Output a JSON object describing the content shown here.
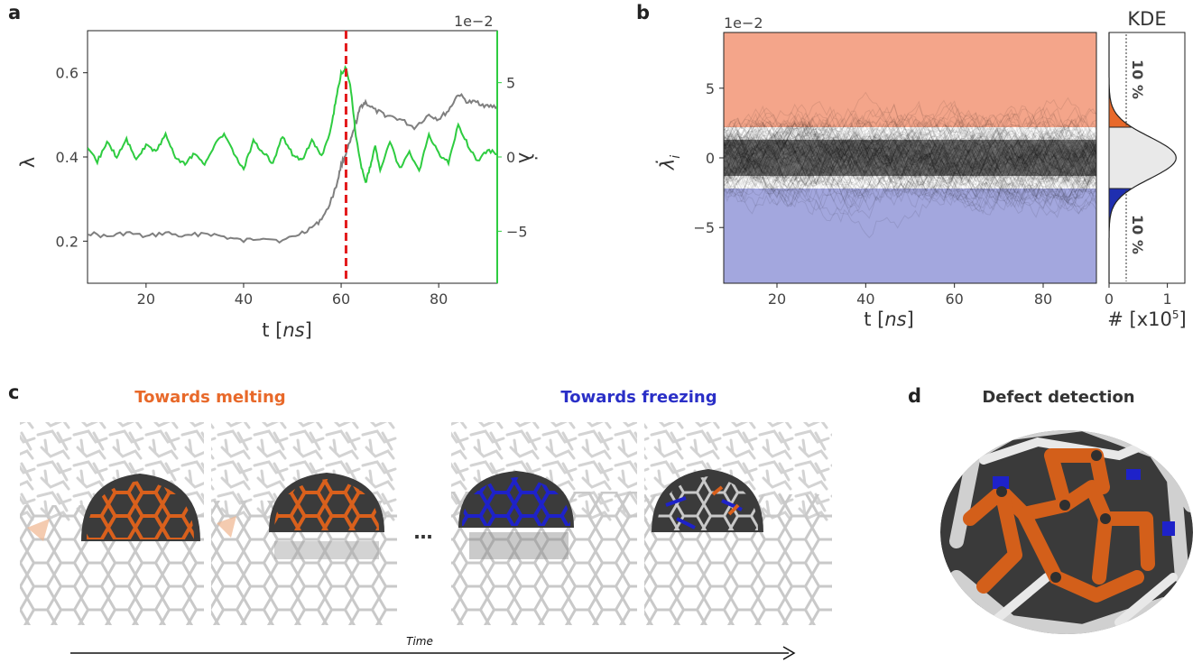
{
  "panel_labels": {
    "a": "a",
    "b": "b",
    "c": "c",
    "d": "d"
  },
  "colors": {
    "lambda": "#7f7f7f",
    "lambda_dot": "#2ecc40",
    "event": "#e31a1c",
    "melting": "#f4a58a",
    "freezing": "#a3a7de",
    "kde_melt": "#e8692a",
    "kde_freeze": "#1f2fb0"
  },
  "chart_data": [
    {
      "type": "line",
      "panel": "a",
      "xlabel_prefix": "t [",
      "xlabel_unit": "ns",
      "xlabel_suffix": "]",
      "ylabel": "λ",
      "ylabel_right": "λ̇",
      "right_multiplier": "1e−2",
      "xlim": [
        8,
        92
      ],
      "ylim": [
        0.1,
        0.7
      ],
      "ylim_right": [
        -8.5,
        8.5
      ],
      "xticks": [
        "20",
        "40",
        "60",
        "80"
      ],
      "yticks": [
        "0.2",
        "0.4",
        "0.6"
      ],
      "yticks_right": [
        "−5",
        "0",
        "5"
      ],
      "event_x": 61,
      "series": [
        {
          "axis": "left",
          "x": [
            8,
            12,
            16,
            20,
            24,
            28,
            32,
            36,
            40,
            44,
            48,
            52,
            55,
            57,
            59,
            60,
            61,
            62,
            63,
            64,
            65,
            67,
            69,
            72,
            75,
            78,
            80,
            82,
            84,
            86,
            88,
            90,
            92
          ],
          "y": [
            0.22,
            0.21,
            0.22,
            0.21,
            0.22,
            0.21,
            0.22,
            0.21,
            0.2,
            0.21,
            0.2,
            0.22,
            0.24,
            0.27,
            0.33,
            0.38,
            0.41,
            0.44,
            0.48,
            0.52,
            0.53,
            0.51,
            0.5,
            0.49,
            0.47,
            0.5,
            0.49,
            0.51,
            0.55,
            0.53,
            0.53,
            0.52,
            0.52
          ]
        },
        {
          "axis": "right",
          "x": [
            8,
            10,
            12,
            14,
            16,
            18,
            20,
            22,
            24,
            26,
            28,
            30,
            32,
            34,
            36,
            38,
            40,
            42,
            44,
            46,
            48,
            50,
            52,
            54,
            56,
            58,
            59,
            60,
            61,
            62,
            63,
            64,
            65,
            66,
            67,
            68,
            70,
            72,
            74,
            76,
            78,
            80,
            82,
            84,
            86,
            88,
            90,
            92
          ],
          "y": [
            0.5,
            -0.3,
            1.0,
            0.0,
            1.2,
            -0.2,
            0.8,
            0.4,
            1.5,
            0.0,
            -0.5,
            0.3,
            -0.6,
            0.8,
            1.6,
            0.2,
            -0.8,
            1.1,
            0.3,
            -0.4,
            1.4,
            0.2,
            -0.2,
            1.1,
            0.0,
            2.0,
            4.0,
            5.6,
            6.0,
            4.5,
            1.5,
            -0.5,
            -1.8,
            -0.6,
            0.8,
            -1.0,
            1.0,
            -0.8,
            0.3,
            -1.0,
            1.5,
            0.2,
            -0.4,
            2.2,
            0.8,
            -0.3,
            0.5,
            0.2
          ]
        }
      ]
    },
    {
      "type": "line",
      "panel": "b",
      "xlabel_prefix": "t [",
      "xlabel_unit": "ns",
      "xlabel_suffix": "]",
      "ylabel": "λ̇",
      "ylabel_sub": "i",
      "multiplier": "1e−2",
      "xlim": [
        8,
        92
      ],
      "ylim": [
        -9,
        9
      ],
      "xticks": [
        "20",
        "40",
        "60",
        "80"
      ],
      "yticks": [
        "−5",
        "0",
        "5"
      ],
      "melting_threshold": 2.2,
      "freezing_threshold": -2.2
    },
    {
      "type": "area",
      "panel": "b-kde",
      "title": "KDE",
      "xlabel": "# [x10",
      "xlabel_sup": "5",
      "xlabel_suffix": "]",
      "xlim": [
        0,
        1.3
      ],
      "xticks": [
        "0",
        "1"
      ],
      "annotations": [
        "10 %",
        "10 %"
      ]
    }
  ],
  "panel_c": {
    "caption_melting": "Towards melting",
    "caption_freezing": "Towards freezing",
    "ellipsis": "…",
    "time_label": "Time"
  },
  "panel_d": {
    "caption": "Defect detection"
  }
}
